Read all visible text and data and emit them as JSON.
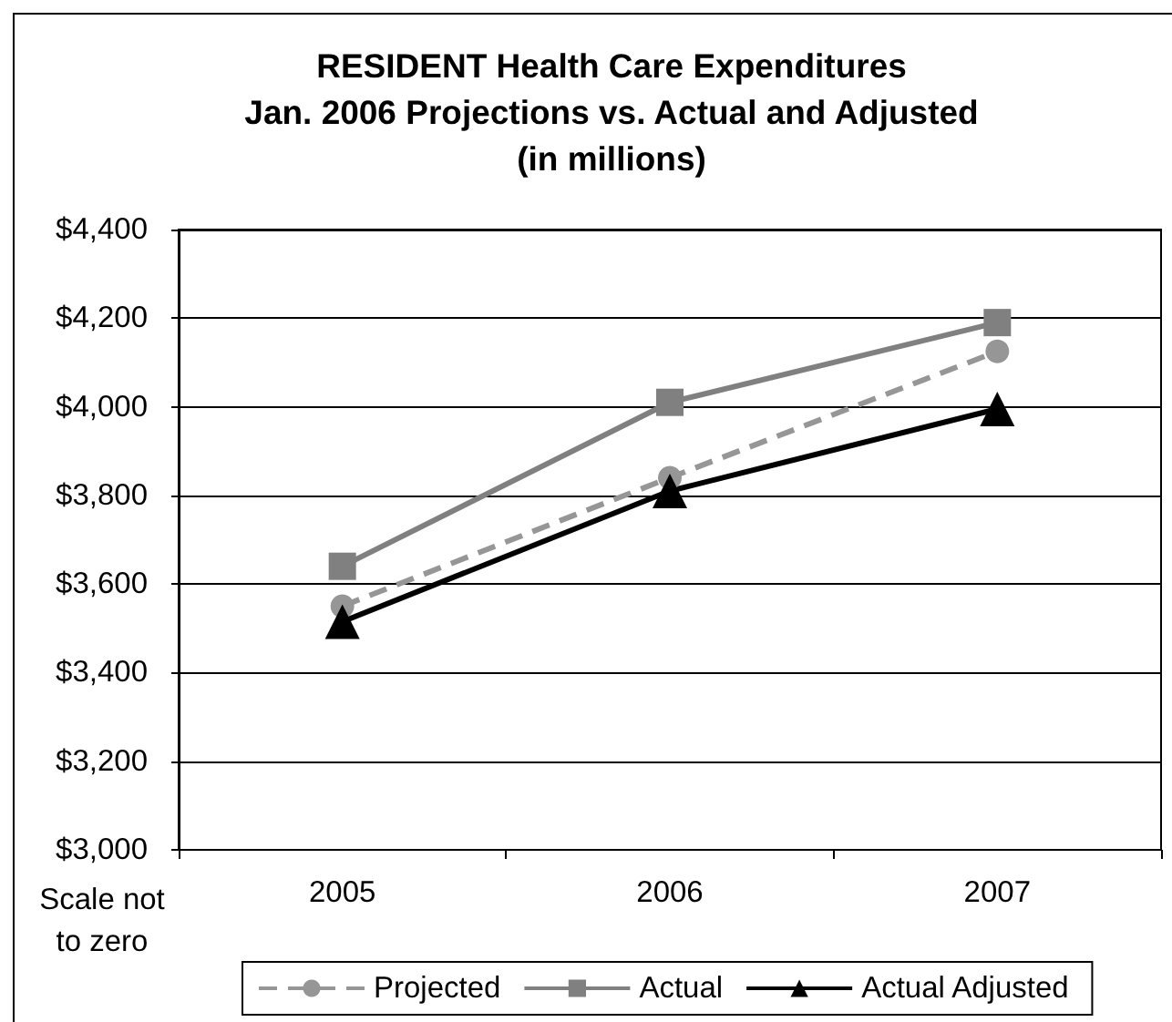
{
  "chart_data": {
    "type": "line",
    "title": "RESIDENT Health Care Expenditures\nJan. 2006 Projections vs. Actual and Adjusted\n(in millions)",
    "categories": [
      "2005",
      "2006",
      "2007"
    ],
    "series": [
      {
        "name": "Projected",
        "color": "#969696",
        "values": [
          3550,
          3840,
          4125
        ],
        "marker": "circle",
        "line_style": "dashed"
      },
      {
        "name": "Actual",
        "color": "#808080",
        "values": [
          3640,
          4010,
          4190
        ],
        "marker": "square",
        "line_style": "solid"
      },
      {
        "name": "Actual Adjusted",
        "color": "#000000",
        "values": [
          3515,
          3810,
          3995
        ],
        "marker": "triangle",
        "line_style": "solid"
      }
    ],
    "ylim": [
      3000,
      4400
    ],
    "yticks": [
      {
        "value": 3000,
        "label": "$3,000"
      },
      {
        "value": 3200,
        "label": "$3,200"
      },
      {
        "value": 3400,
        "label": "$3,400"
      },
      {
        "value": 3600,
        "label": "$3,600"
      },
      {
        "value": 3800,
        "label": "$3,800"
      },
      {
        "value": 4000,
        "label": "$4,000"
      },
      {
        "value": 4200,
        "label": "$4,200"
      },
      {
        "value": 4400,
        "label": "$4,400"
      }
    ],
    "annotations": [
      "Scale not to zero"
    ],
    "grid": "y",
    "legend": "bottom"
  }
}
